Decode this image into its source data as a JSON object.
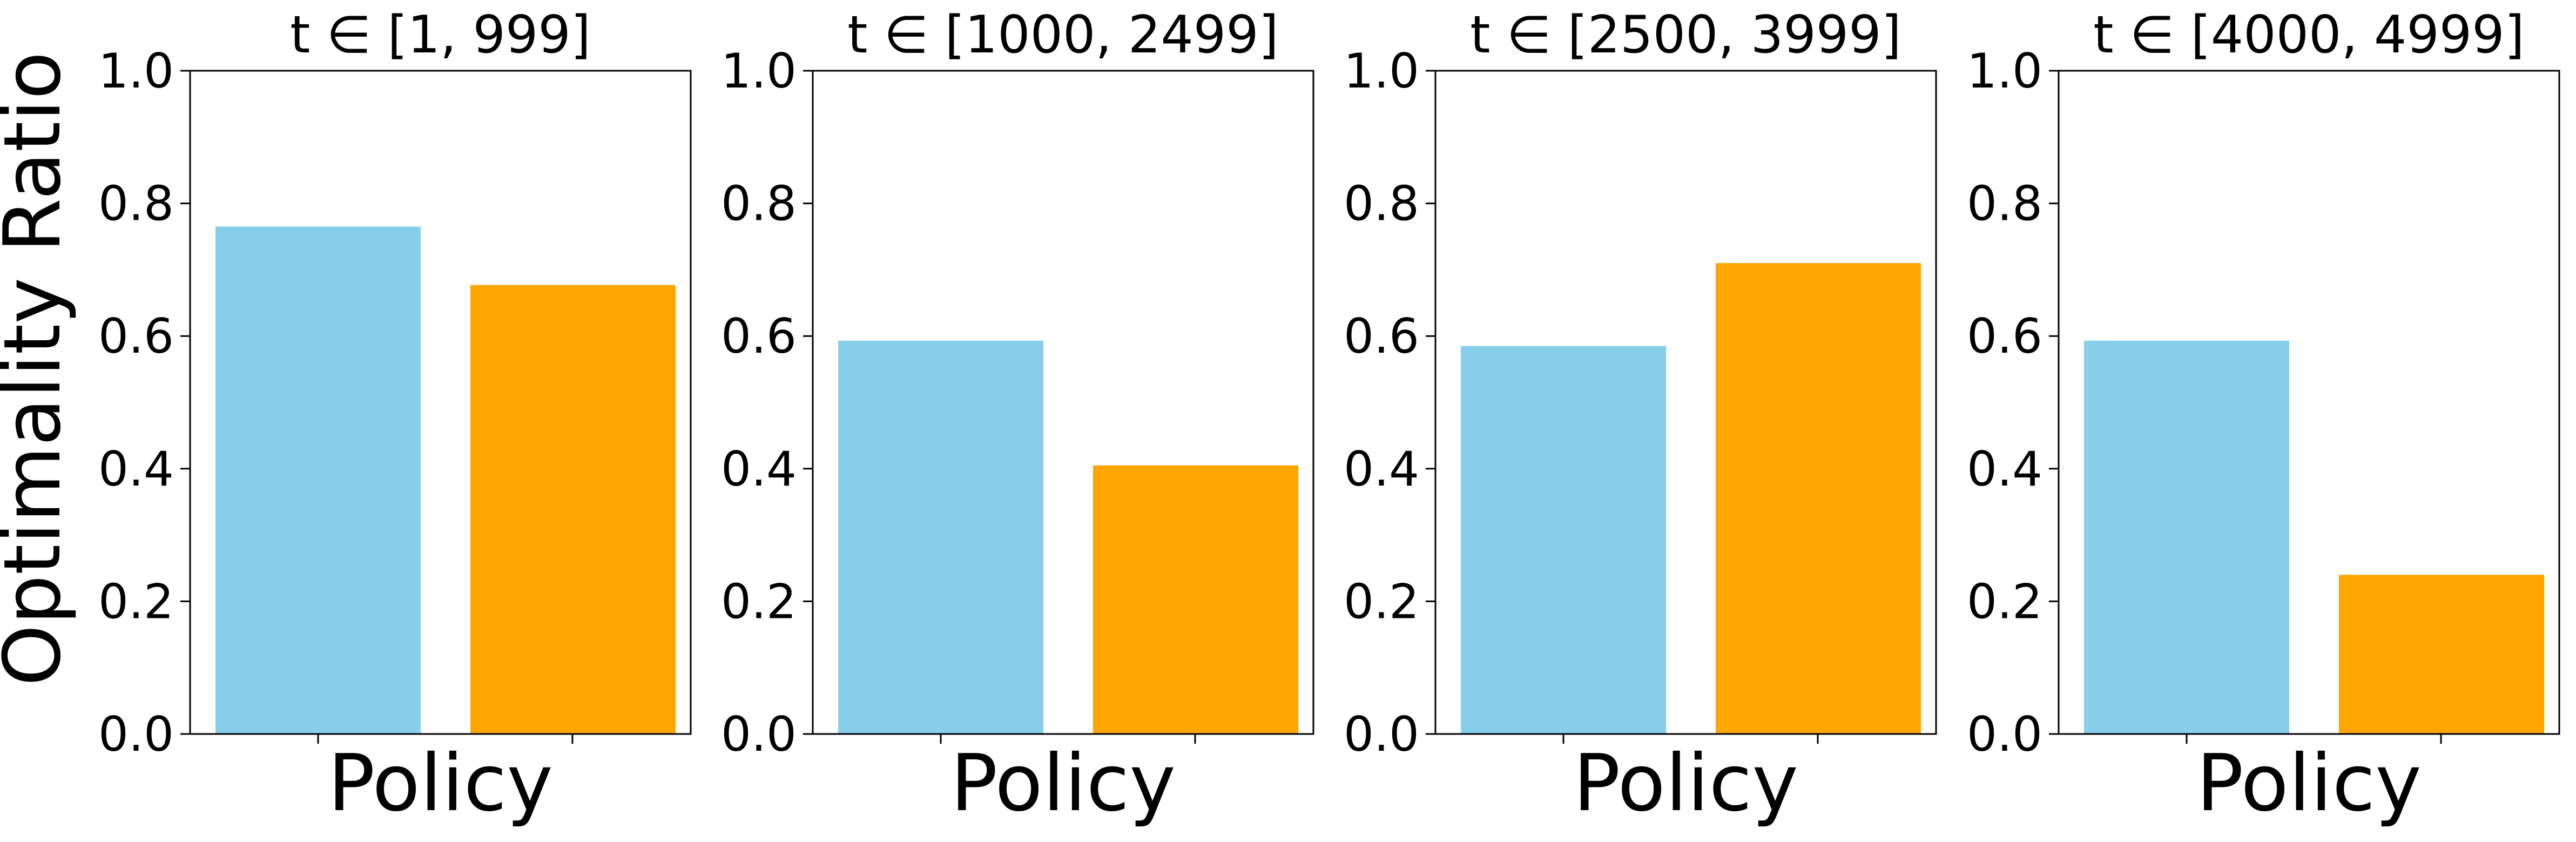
{
  "chart_data": {
    "type": "bar",
    "ylabel": "Optimality Ratio",
    "ylim": [
      0,
      1.0
    ],
    "yticks": [
      "0.0",
      "0.2",
      "0.4",
      "0.6",
      "0.8",
      "1.0"
    ],
    "colors": [
      "#87CEEB",
      "#FFA500"
    ],
    "grid": false,
    "legend": "none",
    "panels": [
      {
        "title": "t ∈ [1, 999]",
        "xlabel": "Policy",
        "values": [
          0.765,
          0.677
        ]
      },
      {
        "title": "t ∈ [1000, 2499]",
        "xlabel": "Policy",
        "values": [
          0.593,
          0.405
        ]
      },
      {
        "title": "t ∈ [2500, 3999]",
        "xlabel": "Policy",
        "values": [
          0.585,
          0.71
        ]
      },
      {
        "title": "t ∈ [4000, 4999]",
        "xlabel": "Policy",
        "values": [
          0.593,
          0.24
        ]
      }
    ]
  }
}
